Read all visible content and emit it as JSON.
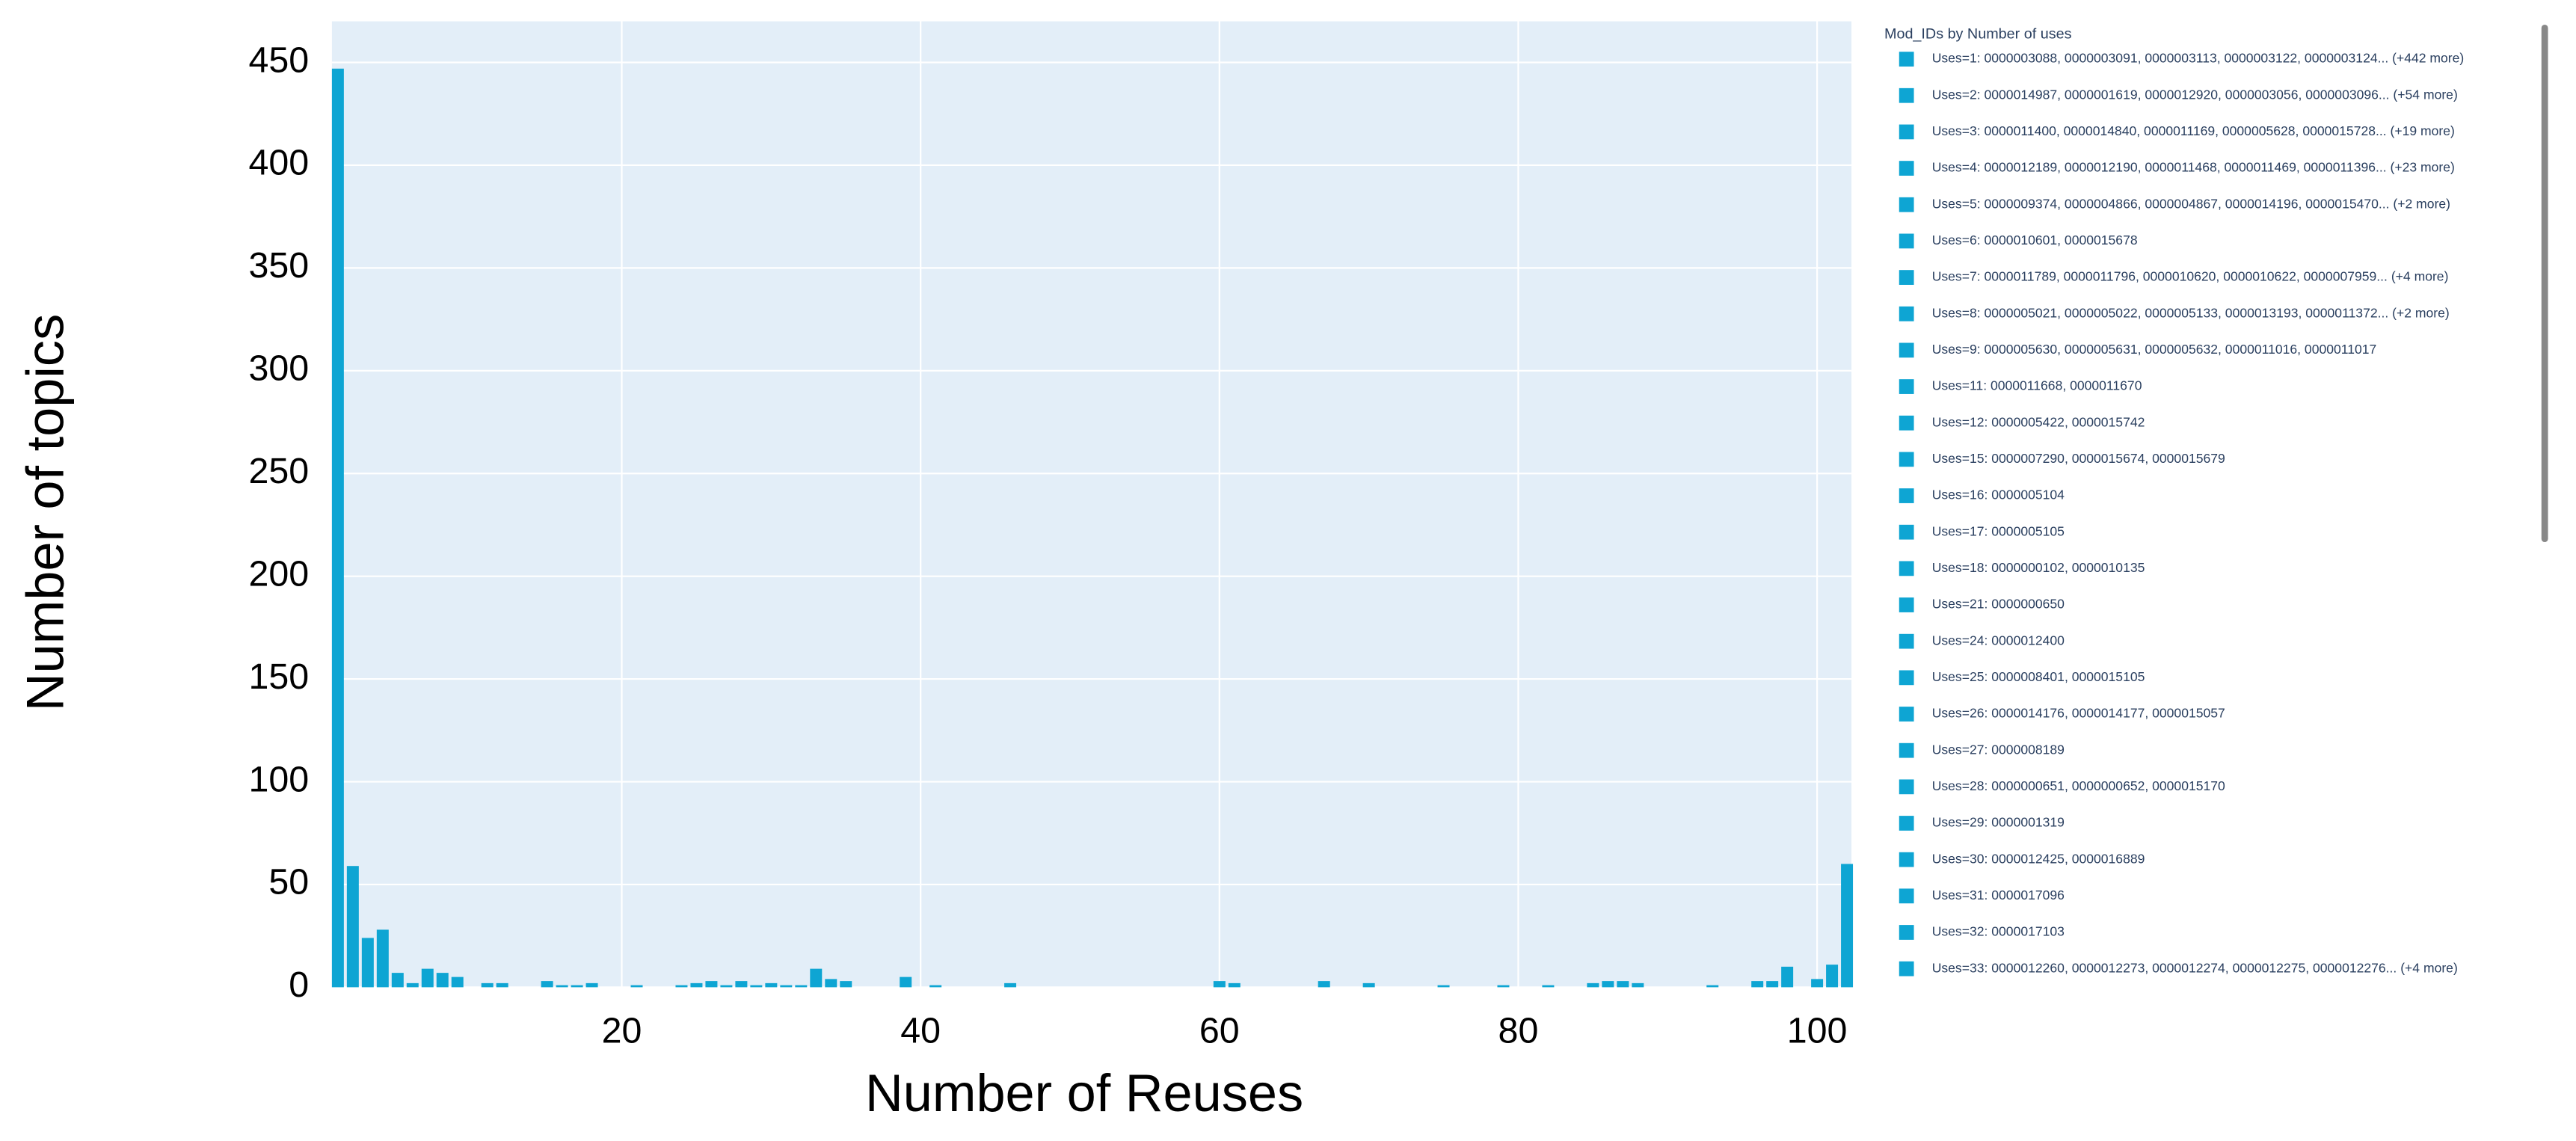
{
  "chart_data": {
    "type": "bar",
    "xlabel": "Number of Reuses",
    "ylabel": "Number of topics",
    "x": [
      1,
      2,
      3,
      4,
      5,
      6,
      7,
      8,
      9,
      11,
      12,
      15,
      16,
      17,
      18,
      21,
      24,
      25,
      26,
      27,
      28,
      29,
      30,
      31,
      32,
      33,
      34,
      35,
      39,
      41,
      46,
      60,
      61,
      67,
      70,
      75,
      79,
      82,
      85,
      86,
      87,
      88,
      93,
      96,
      97,
      98,
      100,
      101,
      102
    ],
    "values": [
      447,
      59,
      24,
      28,
      7,
      2,
      9,
      7,
      5,
      2,
      2,
      3,
      1,
      1,
      2,
      1,
      1,
      2,
      3,
      1,
      3,
      1,
      2,
      1,
      1,
      9,
      4,
      3,
      5,
      1,
      2,
      3,
      2,
      3,
      2,
      1,
      1,
      1,
      2,
      3,
      3,
      2,
      1,
      3,
      3,
      10,
      4,
      11,
      60
    ],
    "color": "#0ea5d3",
    "background": "#e3eef8",
    "xlim": [
      0.6,
      102.3
    ],
    "ylim": [
      0,
      470
    ],
    "xticks": [
      20,
      40,
      60,
      80,
      100
    ],
    "yticks": [
      0,
      50,
      100,
      150,
      200,
      250,
      300,
      350,
      400,
      450
    ],
    "grid": true,
    "legend": {
      "title": "Mod_IDs by Number of uses",
      "entries": [
        "Uses=1: 0000003088, 0000003091, 0000003113, 0000003122, 0000003124... (+442 more)",
        "Uses=2: 0000014987, 0000001619, 0000012920, 0000003056, 0000003096... (+54 more)",
        "Uses=3: 0000011400, 0000014840, 0000011169, 0000005628, 0000015728... (+19 more)",
        "Uses=4: 0000012189, 0000012190, 0000011468, 0000011469, 0000011396... (+23 more)",
        "Uses=5: 0000009374, 0000004866, 0000004867, 0000014196, 0000015470... (+2 more)",
        "Uses=6: 0000010601, 0000015678",
        "Uses=7: 0000011789, 0000011796, 0000010620, 0000010622, 0000007959... (+4 more)",
        "Uses=8: 0000005021, 0000005022, 0000005133, 0000013193, 0000011372... (+2 more)",
        "Uses=9: 0000005630, 0000005631, 0000005632, 0000011016, 0000011017",
        "Uses=11: 0000011668, 0000011670",
        "Uses=12: 0000005422, 0000015742",
        "Uses=15: 0000007290, 0000015674, 0000015679",
        "Uses=16: 0000005104",
        "Uses=17: 0000005105",
        "Uses=18: 0000000102, 0000010135",
        "Uses=21: 0000000650",
        "Uses=24: 0000012400",
        "Uses=25: 0000008401, 0000015105",
        "Uses=26: 0000014176, 0000014177, 0000015057",
        "Uses=27: 0000008189",
        "Uses=28: 0000000651, 0000000652, 0000015170",
        "Uses=29: 0000001319",
        "Uses=30: 0000012425, 0000016889",
        "Uses=31: 0000017096",
        "Uses=32: 0000017103",
        "Uses=33: 0000012260, 0000012273, 0000012274, 0000012275, 0000012276... (+4 more)"
      ]
    }
  }
}
